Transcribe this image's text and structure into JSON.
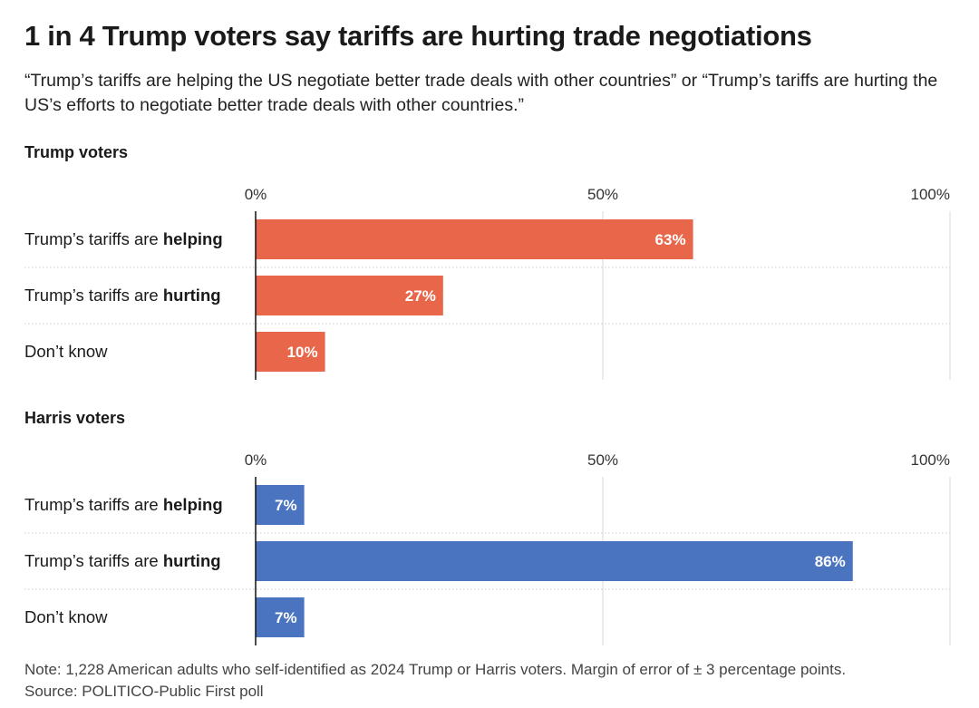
{
  "title": "1 in 4 Trump voters say tariffs are hurting trade negotiations",
  "subtitle": "“Trump’s tariffs are helping the US negotiate better trade deals with other countries” or “Trump’s tariffs are hurting the US’s efforts to negotiate better trade deals with other countries.”",
  "footer": {
    "note": "Note: 1,228 American adults who self-identified as 2024 Trump or Harris voters. Margin of error of ± 3 percentage points.",
    "source": "Source: POLITICO-Public First poll"
  },
  "chart_data": [
    {
      "type": "bar",
      "orientation": "horizontal",
      "title": "Trump voters",
      "categories": [
        {
          "prefix": "Trump’s tariffs are ",
          "bold": "helping"
        },
        {
          "prefix": "Trump’s tariffs are ",
          "bold": "hurting"
        },
        {
          "prefix": "Don’t know",
          "bold": ""
        }
      ],
      "values": [
        63,
        27,
        10
      ],
      "value_labels": [
        "63%",
        "27%",
        "10%"
      ],
      "xlim": [
        0,
        100
      ],
      "ticks": [
        0,
        50,
        100
      ],
      "tick_labels": [
        "0%",
        "50%",
        "100%"
      ],
      "color": "#e8674b",
      "grid": true
    },
    {
      "type": "bar",
      "orientation": "horizontal",
      "title": "Harris voters",
      "categories": [
        {
          "prefix": "Trump’s tariffs are ",
          "bold": "helping"
        },
        {
          "prefix": "Trump’s tariffs are ",
          "bold": "hurting"
        },
        {
          "prefix": "Don’t know",
          "bold": ""
        }
      ],
      "values": [
        7,
        86,
        7
      ],
      "value_labels": [
        "7%",
        "86%",
        "7%"
      ],
      "xlim": [
        0,
        100
      ],
      "ticks": [
        0,
        50,
        100
      ],
      "tick_labels": [
        "0%",
        "50%",
        "100%"
      ],
      "color": "#4a73c0",
      "grid": true
    }
  ]
}
